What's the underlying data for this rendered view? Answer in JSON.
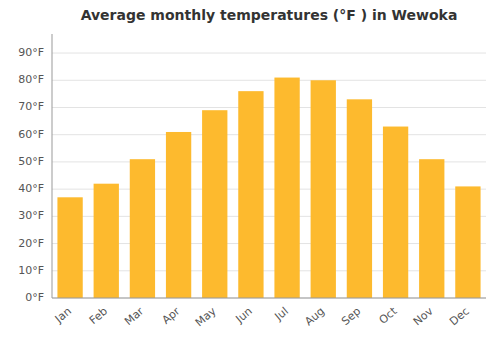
{
  "chart_data": {
    "type": "bar",
    "title": "Average monthly temperatures (°F ) in Wewoka",
    "categories": [
      "Jan",
      "Feb",
      "Mar",
      "Apr",
      "May",
      "Jun",
      "Jul",
      "Aug",
      "Sep",
      "Oct",
      "Nov",
      "Dec"
    ],
    "values": [
      37,
      42,
      51,
      61,
      69,
      76,
      81,
      80,
      73,
      63,
      51,
      41
    ],
    "color": "#FDBA2E",
    "ylim": [
      0,
      97
    ],
    "yticks": [
      {
        "value": 0,
        "label": "0°F"
      },
      {
        "value": 10,
        "label": "10°F"
      },
      {
        "value": 20,
        "label": "20°F"
      },
      {
        "value": 30,
        "label": "30°F"
      },
      {
        "value": 40,
        "label": "40°F"
      },
      {
        "value": 50,
        "label": "50°F"
      },
      {
        "value": 60,
        "label": "60°F"
      },
      {
        "value": 70,
        "label": "70°F"
      },
      {
        "value": 80,
        "label": "80°F"
      },
      {
        "value": 90,
        "label": "90°F"
      }
    ],
    "grid": true
  }
}
